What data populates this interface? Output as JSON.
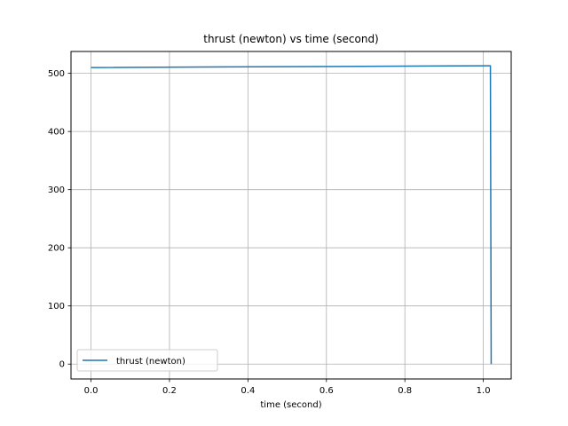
{
  "chart_data": {
    "type": "line",
    "title": "thrust (newton) vs time (second)",
    "xlabel": "time (second)",
    "ylabel": "",
    "xlim": [
      -0.051,
      1.071
    ],
    "ylim": [
      -25.6,
      537.6
    ],
    "xticks": [
      0.0,
      0.2,
      0.4,
      0.6,
      0.8,
      1.0
    ],
    "xtick_labels": [
      "0.0",
      "0.2",
      "0.4",
      "0.6",
      "0.8",
      "1.0"
    ],
    "yticks": [
      0,
      100,
      200,
      300,
      400,
      500
    ],
    "ytick_labels": [
      "0",
      "100",
      "200",
      "300",
      "400",
      "500"
    ],
    "grid": true,
    "legend_position": "lower-left",
    "series": [
      {
        "name": "thrust (newton)",
        "color": "#1f77b4",
        "x": [
          0.0,
          1.015,
          1.018,
          1.02
        ],
        "y": [
          510,
          513,
          513,
          0
        ]
      }
    ]
  }
}
